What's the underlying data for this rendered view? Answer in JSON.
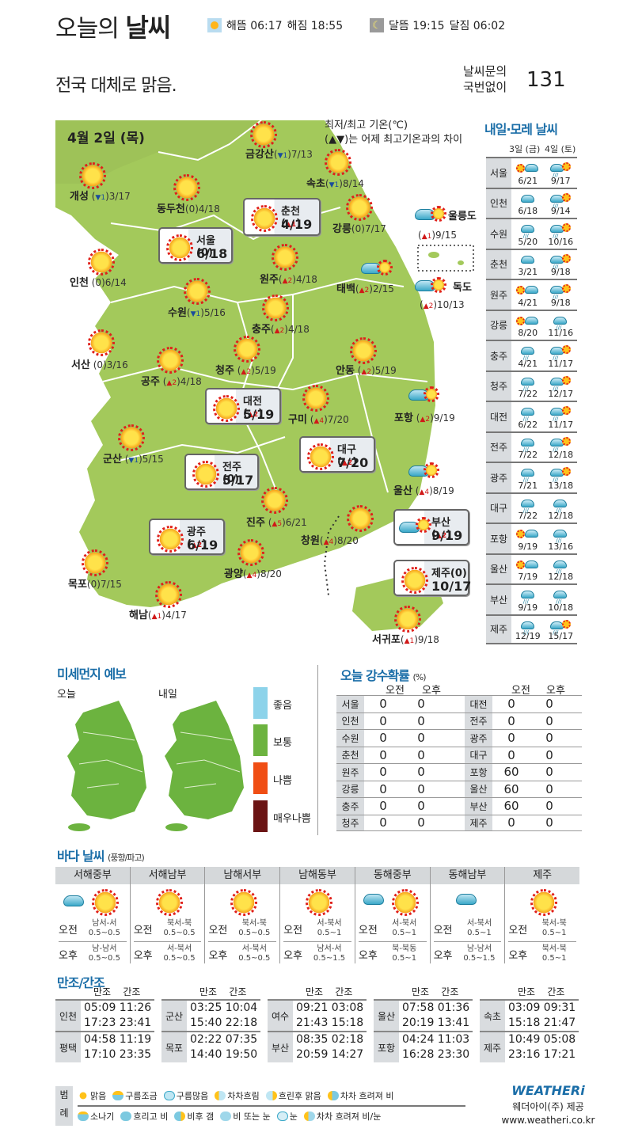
{
  "header": {
    "title_light": "오늘의",
    "title_bold": "날씨",
    "sunrise": "해뜸 06:17",
    "sunset": "해짐 18:55",
    "moonrise": "달뜸 19:15",
    "moonset": "달짐 06:02",
    "summary": "전국 대체로 맑음.",
    "phone_label_1": "날씨문의",
    "phone_label_2": "국번없이",
    "phone_number": "131"
  },
  "map": {
    "date": "4월 2일 (목)",
    "note_1": "최저/최고 기온(℃)",
    "note_2": "(▲▼)는 어제 최고기온과의 차이",
    "colors": {
      "land": "#a3c95b",
      "sun": "#ffd23a",
      "ray": "#e0201a",
      "up": "#d01818",
      "down": "#1a4c9c"
    },
    "cities": [
      {
        "name": "금강산",
        "diff": "▼1",
        "temp": "7/13",
        "weather": "sunny"
      },
      {
        "name": "개성",
        "diff": "▼1",
        "temp": "3/17",
        "weather": "sunny"
      },
      {
        "name": "속초",
        "diff": "▼1",
        "temp": "8/14",
        "weather": "sunny"
      },
      {
        "name": "동두천",
        "diff": "0",
        "temp": "4/18",
        "weather": "sunny"
      },
      {
        "name": "강릉",
        "diff": "0",
        "temp": "7/17",
        "weather": "sunny"
      },
      {
        "name": "인천",
        "diff": "0",
        "temp": "6/14",
        "weather": "sunny"
      },
      {
        "name": "원주",
        "diff": "▲2",
        "temp": "4/18",
        "weather": "sunny"
      },
      {
        "name": "태백",
        "diff": "▲2",
        "temp": "2/15",
        "weather": "cloudy-then-clear"
      },
      {
        "name": "수원",
        "diff": "▼1",
        "temp": "5/16",
        "weather": "sunny"
      },
      {
        "name": "충주",
        "diff": "▲2",
        "temp": "4/18",
        "weather": "sunny"
      },
      {
        "name": "서산",
        "diff": "0",
        "temp": "3/16",
        "weather": "sunny"
      },
      {
        "name": "청주",
        "diff": "▲2",
        "temp": "5/19",
        "weather": "sunny"
      },
      {
        "name": "안동",
        "diff": "▲2",
        "temp": "5/19",
        "weather": "sunny"
      },
      {
        "name": "공주",
        "diff": "▲2",
        "temp": "4/18",
        "weather": "sunny"
      },
      {
        "name": "구미",
        "diff": "▲4",
        "temp": "7/20",
        "weather": "sunny"
      },
      {
        "name": "포항",
        "diff": "▲2",
        "temp": "9/19",
        "weather": "rain-then-clear"
      },
      {
        "name": "군산",
        "diff": "▼1",
        "temp": "5/15",
        "weather": "sunny"
      },
      {
        "name": "울산",
        "diff": "▲4",
        "temp": "8/19",
        "weather": "rain-then-clear"
      },
      {
        "name": "진주",
        "diff": "▲5",
        "temp": "6/21",
        "weather": "sunny"
      },
      {
        "name": "창원",
        "diff": "▲4",
        "temp": "8/20",
        "weather": "sunny"
      },
      {
        "name": "목포",
        "diff": "0",
        "temp": "7/15",
        "weather": "sunny"
      },
      {
        "name": "광양",
        "diff": "▲4",
        "temp": "8/20",
        "weather": "sunny"
      },
      {
        "name": "해남",
        "diff": "▲1",
        "temp": "4/17",
        "weather": "sunny"
      },
      {
        "name": "서귀포",
        "diff": "▲1",
        "temp": "9/18",
        "weather": "sunny"
      },
      {
        "name": "울릉도",
        "diff": "▲1",
        "temp": "9/15",
        "weather": "rain-then-clear"
      },
      {
        "name": "독도",
        "diff": "▲2",
        "temp": "10/13",
        "weather": "cloudy-then-clear"
      }
    ],
    "major": [
      {
        "name": "춘천",
        "diff": "▲1",
        "temp": "4/19"
      },
      {
        "name": "서울",
        "diff": "0",
        "temp": "6/18"
      },
      {
        "name": "대전",
        "diff": "▲2",
        "temp": "5/19"
      },
      {
        "name": "대구",
        "diff": "▲2",
        "temp": "7/20"
      },
      {
        "name": "전주",
        "diff": "0",
        "temp": "5/17"
      },
      {
        "name": "광주",
        "diff": "▲2",
        "temp": "6/19"
      },
      {
        "name": "부산",
        "diff": "▲2",
        "temp": "9/19"
      },
      {
        "name": "제주",
        "diff": "0",
        "temp": "10/17"
      }
    ]
  },
  "forecast": {
    "title": "내일·모레 날씨",
    "day1": "3일 (금)",
    "day2": "4일 (토)",
    "rows": [
      {
        "city": "서울",
        "d1": "6/21",
        "d2": "9/17",
        "w1": "sun-cloud",
        "w2": "rain-sun"
      },
      {
        "city": "인천",
        "d1": "6/18",
        "d2": "9/14",
        "w1": "cloud",
        "w2": "rain-sun"
      },
      {
        "city": "수원",
        "d1": "5/20",
        "d2": "10/16",
        "w1": "rain",
        "w2": "rain-sun"
      },
      {
        "city": "춘천",
        "d1": "3/21",
        "d2": "9/18",
        "w1": "cloud",
        "w2": "rain-sun"
      },
      {
        "city": "원주",
        "d1": "4/21",
        "d2": "9/18",
        "w1": "sun-cloud",
        "w2": "rain-sun"
      },
      {
        "city": "강릉",
        "d1": "8/20",
        "d2": "11/16",
        "w1": "sun-cloud",
        "w2": "rain"
      },
      {
        "city": "충주",
        "d1": "4/21",
        "d2": "11/17",
        "w1": "rain",
        "w2": "rain-sun"
      },
      {
        "city": "청주",
        "d1": "7/22",
        "d2": "12/17",
        "w1": "rain",
        "w2": "rain-sun"
      },
      {
        "city": "대전",
        "d1": "6/22",
        "d2": "11/17",
        "w1": "rain",
        "w2": "rain-sun"
      },
      {
        "city": "전주",
        "d1": "7/22",
        "d2": "12/18",
        "w1": "rain",
        "w2": "rain-sun"
      },
      {
        "city": "광주",
        "d1": "7/21",
        "d2": "13/18",
        "w1": "rain",
        "w2": "rain-sun"
      },
      {
        "city": "대구",
        "d1": "7/22",
        "d2": "12/18",
        "w1": "rain",
        "w2": "rain"
      },
      {
        "city": "포항",
        "d1": "9/19",
        "d2": "13/16",
        "w1": "sun-cloud",
        "w2": "rain"
      },
      {
        "city": "울산",
        "d1": "7/19",
        "d2": "12/18",
        "w1": "sun-cloud",
        "w2": "rain"
      },
      {
        "city": "부산",
        "d1": "9/19",
        "d2": "10/18",
        "w1": "rain",
        "w2": "rain"
      },
      {
        "city": "제주",
        "d1": "12/19",
        "d2": "15/17",
        "w1": "rain",
        "w2": "rain-sun"
      }
    ]
  },
  "dust": {
    "title": "미세먼지 예보",
    "today": "오늘",
    "tomorrow": "내일",
    "legend": [
      {
        "label": "좋음",
        "color": "#8dd3ea"
      },
      {
        "label": "보통",
        "color": "#6cb33f"
      },
      {
        "label": "나쁨",
        "color": "#f04e14"
      },
      {
        "label": "매우나쁨",
        "color": "#6b1414"
      }
    ]
  },
  "precip": {
    "title": "오늘 강수확률",
    "unit": "(%)",
    "am": "오전",
    "pm": "오후",
    "left": [
      {
        "city": "서울",
        "am": "0",
        "pm": "0"
      },
      {
        "city": "인천",
        "am": "0",
        "pm": "0"
      },
      {
        "city": "수원",
        "am": "0",
        "pm": "0"
      },
      {
        "city": "춘천",
        "am": "0",
        "pm": "0"
      },
      {
        "city": "원주",
        "am": "0",
        "pm": "0"
      },
      {
        "city": "강릉",
        "am": "0",
        "pm": "0"
      },
      {
        "city": "충주",
        "am": "0",
        "pm": "0"
      },
      {
        "city": "청주",
        "am": "0",
        "pm": "0"
      }
    ],
    "right": [
      {
        "city": "대전",
        "am": "0",
        "pm": "0"
      },
      {
        "city": "전주",
        "am": "0",
        "pm": "0"
      },
      {
        "city": "광주",
        "am": "0",
        "pm": "0"
      },
      {
        "city": "대구",
        "am": "0",
        "pm": "0"
      },
      {
        "city": "포항",
        "am": "60",
        "pm": "0"
      },
      {
        "city": "울산",
        "am": "60",
        "pm": "0"
      },
      {
        "city": "부산",
        "am": "60",
        "pm": "0"
      },
      {
        "city": "제주",
        "am": "0",
        "pm": "0"
      }
    ]
  },
  "sea": {
    "title": "바다 날씨",
    "subtitle": "(풍향/파고)",
    "am": "오전",
    "pm": "오후",
    "zones": [
      {
        "name": "서해중부",
        "icons": [
          "cloud",
          "sun"
        ],
        "am_dir": "남서-서",
        "am_wave": "0.5~0.5",
        "pm_dir": "남-남서",
        "pm_wave": "0.5~0.5"
      },
      {
        "name": "서해남부",
        "icons": [
          "sun"
        ],
        "am_dir": "북서-북",
        "am_wave": "0.5~0.5",
        "pm_dir": "서-북서",
        "pm_wave": "0.5~0.5"
      },
      {
        "name": "남해서부",
        "icons": [
          "sun"
        ],
        "am_dir": "북서-북",
        "am_wave": "0.5~0.5",
        "pm_dir": "서-북서",
        "pm_wave": "0.5~0.5"
      },
      {
        "name": "남해동부",
        "icons": [
          "sun"
        ],
        "am_dir": "서-북서",
        "am_wave": "0.5~1",
        "pm_dir": "남서-서",
        "pm_wave": "0.5~1.5"
      },
      {
        "name": "동해중부",
        "icons": [
          "rain",
          "sun"
        ],
        "am_dir": "서-북서",
        "am_wave": "0.5~1",
        "pm_dir": "북-북동",
        "pm_wave": "0.5~1"
      },
      {
        "name": "동해남부",
        "icons": [
          "rain"
        ],
        "am_dir": "서-북서",
        "am_wave": "0.5~1",
        "pm_dir": "남-남서",
        "pm_wave": "0.5~1.5"
      },
      {
        "name": "제주",
        "icons": [
          "sun"
        ],
        "am_dir": "북서-북",
        "am_wave": "0.5~1",
        "pm_dir": "북서-북",
        "pm_wave": "0.5~1"
      }
    ]
  },
  "tide": {
    "title": "만조/간조",
    "high": "만조",
    "low": "간조",
    "groups": [
      [
        {
          "city": "인천",
          "l1": "05:09 11:26",
          "l2": "17:23 23:41"
        },
        {
          "city": "평택",
          "l1": "04:58 11:19",
          "l2": "17:10 23:35"
        }
      ],
      [
        {
          "city": "군산",
          "l1": "03:25 10:04",
          "l2": "15:40 22:18"
        },
        {
          "city": "목포",
          "l1": "02:22 07:35",
          "l2": "14:40 19:50"
        }
      ],
      [
        {
          "city": "여수",
          "l1": "09:21 03:08",
          "l2": "21:43 15:18"
        },
        {
          "city": "부산",
          "l1": "08:35 02:18",
          "l2": "20:59 14:27"
        }
      ],
      [
        {
          "city": "울산",
          "l1": "07:58 01:36",
          "l2": "20:19 13:41"
        },
        {
          "city": "포항",
          "l1": "04:24 11:03",
          "l2": "16:28 23:30"
        }
      ],
      [
        {
          "city": "속초",
          "l1": "03:09 09:31",
          "l2": "15:18 21:47"
        },
        {
          "city": "제주",
          "l1": "10:49 05:08",
          "l2": "23:16 17:21"
        }
      ]
    ]
  },
  "legend": {
    "label_1": "범",
    "label_2": "례",
    "row1": [
      "맑음",
      "구름조금",
      "구름많음",
      "차차흐림",
      "흐린후 맑음",
      "차차 흐려져 비"
    ],
    "row2": [
      "소나기",
      "흐리고 비",
      "비후 갬",
      "비 또는 눈",
      "눈",
      "차차 흐려져 비/눈"
    ]
  },
  "brand": {
    "logo": "WEATHERi",
    "provider": "웨더아이(주) 제공",
    "url": "www.weatheri.co.kr"
  }
}
